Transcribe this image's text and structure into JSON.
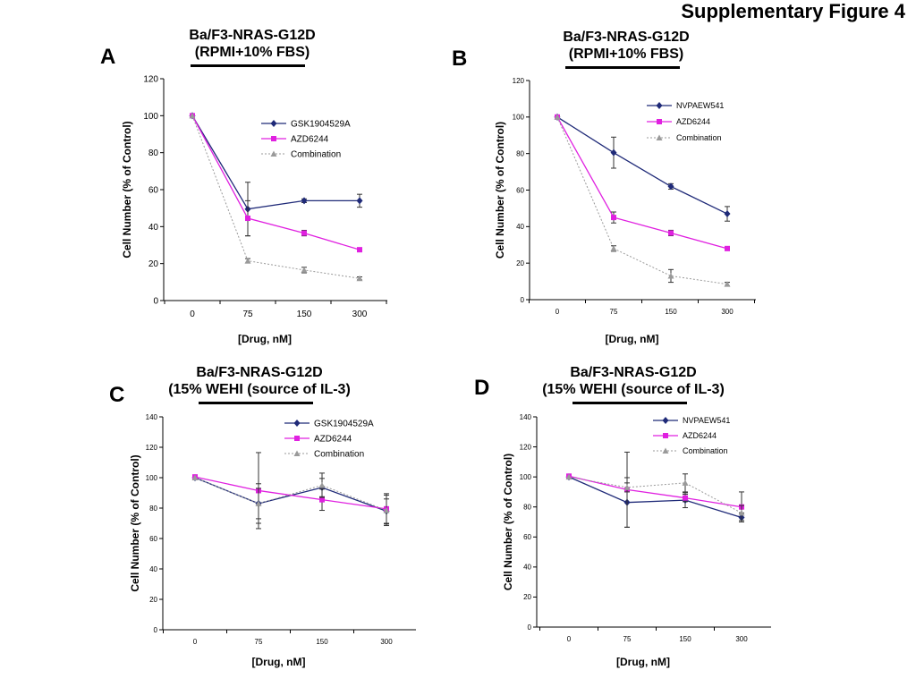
{
  "figure": {
    "title": "Supplementary Figure 4"
  },
  "colors": {
    "blue": "#1f2a78",
    "magenta": "#e020e0",
    "gray": "#9a9a9a"
  },
  "chart_data": [
    {
      "type": "line",
      "panel": "A",
      "title": [
        "Ba/F3-NRAS-G12D",
        "(RPMI+10% FBS)"
      ],
      "xlabel": "[Drug, nM]",
      "ylabel": "Cell Number (% of Control)",
      "categories": [
        "0",
        "75",
        "150",
        "300"
      ],
      "ylim": [
        0,
        120
      ],
      "yticks": [
        "0",
        "20",
        "40",
        "60",
        "80",
        "100",
        "120"
      ],
      "legend_position": "top-right",
      "series": [
        {
          "name": "GSK1904529A",
          "color": "#1f2a78",
          "marker": "diamond",
          "dash": false,
          "values": [
            100,
            49.5,
            54,
            54
          ],
          "errors": [
            0,
            14.5,
            1,
            3.5
          ]
        },
        {
          "name": "AZD6244",
          "color": "#e020e0",
          "marker": "square",
          "dash": false,
          "values": [
            100,
            44.5,
            36.5,
            27.5
          ],
          "errors": [
            0,
            9.5,
            1.5,
            0.8
          ]
        },
        {
          "name": "Combination",
          "color": "#9a9a9a",
          "marker": "triangle",
          "dash": true,
          "values": [
            100,
            21.5,
            16.5,
            12
          ],
          "errors": [
            0,
            1.2,
            1.5,
            0.8
          ]
        }
      ]
    },
    {
      "type": "line",
      "panel": "B",
      "title": [
        "Ba/F3-NRAS-G12D",
        "(RPMI+10% FBS)"
      ],
      "xlabel": "[Drug, nM]",
      "ylabel": "Cell Number (% of Control)",
      "categories": [
        "0",
        "75",
        "150",
        "300"
      ],
      "ylim": [
        0,
        120
      ],
      "yticks": [
        "0",
        "20",
        "40",
        "60",
        "80",
        "100",
        "120"
      ],
      "legend_position": "top-right",
      "series": [
        {
          "name": "NVPAEW541",
          "color": "#1f2a78",
          "marker": "diamond",
          "dash": false,
          "values": [
            100,
            80.5,
            62,
            47
          ],
          "errors": [
            0,
            8.5,
            1.5,
            4
          ]
        },
        {
          "name": "AZD6244",
          "color": "#e020e0",
          "marker": "square",
          "dash": false,
          "values": [
            100,
            45,
            36.5,
            28
          ],
          "errors": [
            0,
            3,
            1.5,
            1
          ]
        },
        {
          "name": "Combination",
          "color": "#9a9a9a",
          "marker": "triangle",
          "dash": true,
          "values": [
            100,
            28,
            13,
            8.5
          ],
          "errors": [
            0,
            1.5,
            3.5,
            1
          ]
        }
      ]
    },
    {
      "type": "line",
      "panel": "C",
      "title": [
        "Ba/F3-NRAS-G12D",
        "(15% WEHI (source of IL-3)"
      ],
      "xlabel": "[Drug, nM]",
      "ylabel": "Cell Number (% of Control)",
      "categories": [
        "0",
        "75",
        "150",
        "300"
      ],
      "ylim": [
        0,
        140
      ],
      "yticks": [
        "0",
        "20",
        "40",
        "60",
        "80",
        "100",
        "120",
        "140"
      ],
      "legend_position": "top-right",
      "series": [
        {
          "name": "GSK1904529A",
          "color": "#1f2a78",
          "marker": "diamond",
          "dash": false,
          "values": [
            100,
            83,
            93.5,
            78
          ],
          "errors": [
            0,
            13,
            6,
            8
          ]
        },
        {
          "name": "AZD6244",
          "color": "#e020e0",
          "marker": "square",
          "dash": false,
          "values": [
            100.5,
            91.5,
            85.5,
            79.5
          ],
          "errors": [
            0,
            25,
            7,
            10
          ]
        },
        {
          "name": "Combination",
          "color": "#9a9a9a",
          "marker": "triangle",
          "dash": true,
          "values": [
            100,
            83,
            95,
            78.5
          ],
          "errors": [
            0,
            10,
            8,
            10
          ]
        }
      ]
    },
    {
      "type": "line",
      "panel": "D",
      "title": [
        "Ba/F3-NRAS-G12D",
        "(15% WEHI (source of IL-3)"
      ],
      "xlabel": "[Drug, nM]",
      "ylabel": "Cell Number (% of Control)",
      "categories": [
        "0",
        "75",
        "150",
        "300"
      ],
      "ylim": [
        0,
        140
      ],
      "yticks": [
        "0",
        "20",
        "40",
        "60",
        "80",
        "100",
        "120",
        "140"
      ],
      "legend_position": "top-right",
      "series": [
        {
          "name": "NVPAEW541",
          "color": "#1f2a78",
          "marker": "diamond",
          "dash": false,
          "values": [
            100,
            83,
            84.5,
            73
          ],
          "errors": [
            0,
            16.5,
            5,
            3
          ]
        },
        {
          "name": "AZD6244",
          "color": "#e020e0",
          "marker": "square",
          "dash": false,
          "values": [
            100.5,
            91.5,
            86,
            80
          ],
          "errors": [
            0,
            25,
            2.5,
            10
          ]
        },
        {
          "name": "Combination",
          "color": "#9a9a9a",
          "marker": "triangle",
          "dash": true,
          "values": [
            100,
            93,
            96,
            76
          ],
          "errors": [
            0,
            3,
            6,
            5
          ]
        }
      ]
    }
  ]
}
